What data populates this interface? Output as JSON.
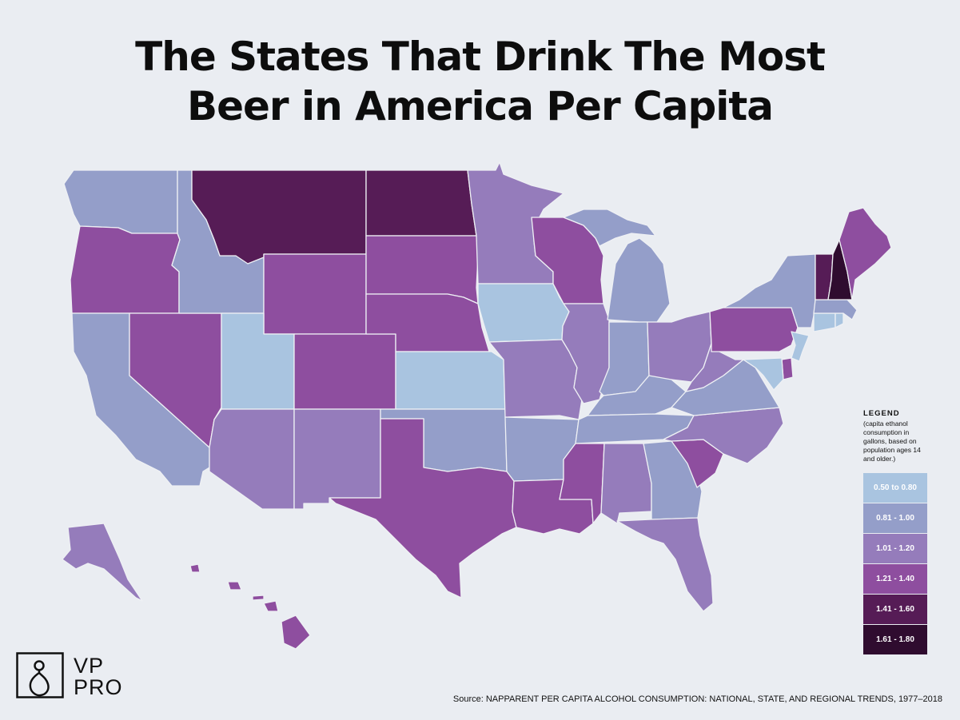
{
  "title": {
    "line1": "The States That Drink The Most",
    "line2": "Beer in America Per Capita"
  },
  "legend": {
    "heading": "LEGEND",
    "note": "(capita ethanol consumption in gallons, based on population ages 14 and older.)",
    "bins": [
      {
        "label": "0.50 to 0.80",
        "color": "#a9c4e0"
      },
      {
        "label": "0.81 - 1.00",
        "color": "#949ec9"
      },
      {
        "label": "1.01 - 1.20",
        "color": "#957cbb"
      },
      {
        "label": "1.21 - 1.40",
        "color": "#8e4e9f"
      },
      {
        "label": "1.41 - 1.60",
        "color": "#561c56"
      },
      {
        "label": "1.61 - 1.80",
        "color": "#2f0c2f"
      }
    ]
  },
  "states": {
    "WA": 1,
    "OR": 3,
    "CA": 1,
    "NV": 3,
    "ID": 1,
    "MT": 4,
    "WY": 3,
    "UT": 0,
    "AZ": 2,
    "CO": 3,
    "NM": 2,
    "ND": 4,
    "SD": 3,
    "NE": 3,
    "KS": 0,
    "OK": 1,
    "TX": 3,
    "MN": 2,
    "IA": 0,
    "MO": 2,
    "AR": 1,
    "LA": 3,
    "WI": 3,
    "IL": 2,
    "MI": 1,
    "IN": 1,
    "OH": 2,
    "KY": 1,
    "TN": 1,
    "MS": 3,
    "AL": 2,
    "GA": 1,
    "FL": 2,
    "SC": 3,
    "NC": 2,
    "VA": 1,
    "WV": 2,
    "PA": 3,
    "NY": 1,
    "VT": 4,
    "NH": 5,
    "ME": 3,
    "MA": 1,
    "CT": 0,
    "RI": 0,
    "NJ": 0,
    "DE": 3,
    "MD": 0,
    "AK": 2,
    "HI": 3
  },
  "logo": {
    "line1": "VP",
    "line2": "PRO"
  },
  "source": "Source: NAPPARENT PER CAPITA ALCOHOL CONSUMPTION: NATIONAL, STATE, AND REGIONAL TRENDS, 1977–2018"
}
